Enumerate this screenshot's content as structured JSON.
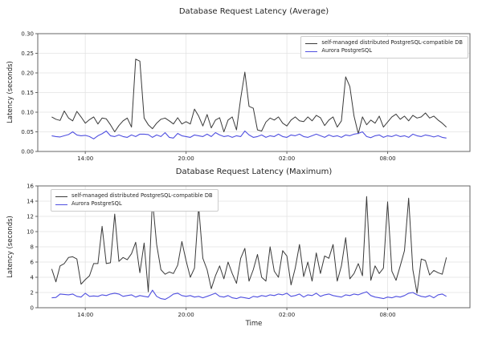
{
  "style": {
    "background_color": "#ffffff",
    "grid_color": "#e3e3e3",
    "spine_color": "#666666",
    "text_color": "#262626",
    "legend_border_color": "#cccccc"
  },
  "chart_data": [
    {
      "type": "line",
      "title": "Database Request Latency (Average)",
      "xlabel": "",
      "ylabel": "Latency (seconds)",
      "grid": true,
      "legend_position": "upper right",
      "ylim": [
        0,
        0.3
      ],
      "y_ticks": [
        0.0,
        0.05,
        0.1,
        0.15,
        0.2,
        0.25,
        0.3
      ],
      "y_tick_labels": [
        "0.00",
        "0.05",
        "0.10",
        "0.15",
        "0.20",
        "0.25",
        "0.30"
      ],
      "xlim_hours": [
        11.17,
        36.9
      ],
      "x_ticks_hours": [
        14,
        20,
        26,
        32
      ],
      "x_tick_labels": [
        "14:00",
        "20:00",
        "02:00",
        "08:00"
      ],
      "x_start_hour": 12.0,
      "x_step_hours": 0.25,
      "series": [
        {
          "name": "self-managed distributed PostgreSQL-compatible DB",
          "color": "#3a3a3a",
          "line_width": 1,
          "values": [
            0.088,
            0.082,
            0.079,
            0.103,
            0.085,
            0.078,
            0.102,
            0.088,
            0.072,
            0.081,
            0.088,
            0.07,
            0.085,
            0.083,
            0.068,
            0.05,
            0.066,
            0.078,
            0.085,
            0.062,
            0.235,
            0.23,
            0.085,
            0.068,
            0.058,
            0.072,
            0.082,
            0.085,
            0.078,
            0.07,
            0.086,
            0.07,
            0.076,
            0.07,
            0.108,
            0.09,
            0.065,
            0.094,
            0.06,
            0.08,
            0.086,
            0.05,
            0.08,
            0.088,
            0.055,
            0.135,
            0.202,
            0.115,
            0.11,
            0.055,
            0.052,
            0.075,
            0.085,
            0.08,
            0.088,
            0.072,
            0.065,
            0.08,
            0.088,
            0.078,
            0.076,
            0.088,
            0.078,
            0.092,
            0.086,
            0.066,
            0.08,
            0.088,
            0.062,
            0.078,
            0.19,
            0.165,
            0.09,
            0.045,
            0.088,
            0.068,
            0.08,
            0.072,
            0.09,
            0.062,
            0.075,
            0.088,
            0.095,
            0.082,
            0.09,
            0.078,
            0.092,
            0.085,
            0.088,
            0.098,
            0.085,
            0.09,
            0.08,
            0.072,
            0.062
          ]
        },
        {
          "name": "Aurora PostgreSQL",
          "color": "#5050e0",
          "line_width": 1.1,
          "values": [
            0.04,
            0.038,
            0.037,
            0.04,
            0.043,
            0.05,
            0.042,
            0.04,
            0.041,
            0.038,
            0.032,
            0.04,
            0.045,
            0.052,
            0.04,
            0.038,
            0.042,
            0.038,
            0.036,
            0.042,
            0.038,
            0.044,
            0.044,
            0.043,
            0.036,
            0.042,
            0.038,
            0.048,
            0.036,
            0.034,
            0.046,
            0.04,
            0.038,
            0.036,
            0.042,
            0.04,
            0.038,
            0.044,
            0.038,
            0.048,
            0.042,
            0.038,
            0.04,
            0.036,
            0.04,
            0.038,
            0.052,
            0.042,
            0.036,
            0.038,
            0.042,
            0.036,
            0.04,
            0.038,
            0.044,
            0.038,
            0.036,
            0.042,
            0.04,
            0.044,
            0.038,
            0.036,
            0.04,
            0.044,
            0.04,
            0.036,
            0.042,
            0.038,
            0.04,
            0.036,
            0.042,
            0.04,
            0.044,
            0.046,
            0.05,
            0.038,
            0.035,
            0.04,
            0.042,
            0.036,
            0.04,
            0.038,
            0.042,
            0.038,
            0.04,
            0.036,
            0.044,
            0.04,
            0.038,
            0.042,
            0.04,
            0.037,
            0.04,
            0.036,
            0.034
          ]
        }
      ]
    },
    {
      "type": "line",
      "title": "Database Request Latency (Maximum)",
      "xlabel": "Time",
      "ylabel": "Latency (seconds)",
      "grid": true,
      "legend_position": "upper left",
      "ylim": [
        0,
        16
      ],
      "y_ticks": [
        0,
        2,
        4,
        6,
        8,
        10,
        12,
        14,
        16
      ],
      "y_tick_labels": [
        "0",
        "2",
        "4",
        "6",
        "8",
        "10",
        "12",
        "14",
        "16"
      ],
      "xlim_hours": [
        11.17,
        36.9
      ],
      "x_ticks_hours": [
        14,
        20,
        26,
        32
      ],
      "x_tick_labels": [
        "14:00",
        "20:00",
        "02:00",
        "08:00"
      ],
      "x_start_hour": 12.0,
      "x_step_hours": 0.25,
      "series": [
        {
          "name": "self-managed distributed PostgreSQL-compatible DB",
          "color": "#3a3a3a",
          "line_width": 1,
          "values": [
            5.1,
            3.4,
            5.5,
            5.8,
            6.6,
            6.7,
            6.4,
            3.1,
            3.7,
            4.2,
            5.8,
            5.8,
            10.7,
            5.8,
            5.9,
            12.3,
            6.1,
            6.6,
            6.3,
            7.1,
            8.6,
            4.6,
            8.5,
            2.1,
            14.2,
            8.3,
            5.0,
            4.4,
            4.7,
            4.5,
            5.6,
            8.7,
            6.2,
            4.0,
            5.2,
            13.3,
            6.5,
            5.0,
            2.5,
            4.2,
            5.5,
            3.8,
            6.0,
            4.5,
            3.2,
            6.5,
            7.8,
            3.5,
            5.0,
            7.0,
            4.0,
            3.5,
            8.0,
            4.8,
            4.0,
            7.5,
            6.8,
            3.0,
            5.2,
            8.3,
            4.1,
            6.0,
            3.5,
            7.2,
            4.5,
            6.8,
            6.5,
            8.3,
            3.5,
            5.5,
            9.2,
            3.8,
            4.5,
            5.8,
            4.2,
            14.6,
            3.6,
            5.5,
            4.5,
            5.2,
            13.9,
            4.8,
            3.6,
            5.5,
            7.5,
            14.4,
            5.0,
            1.9,
            6.4,
            6.2,
            4.3,
            4.9,
            4.6,
            4.4,
            6.6
          ]
        },
        {
          "name": "Aurora PostgreSQL",
          "color": "#5050e0",
          "line_width": 1.1,
          "values": [
            1.3,
            1.35,
            1.8,
            1.75,
            1.7,
            1.8,
            1.5,
            1.4,
            1.9,
            1.5,
            1.55,
            1.5,
            1.7,
            1.6,
            1.8,
            1.9,
            1.8,
            1.5,
            1.6,
            1.7,
            1.4,
            1.6,
            1.5,
            1.4,
            2.3,
            1.5,
            1.2,
            1.1,
            1.4,
            1.8,
            1.9,
            1.6,
            1.5,
            1.6,
            1.4,
            1.5,
            1.3,
            1.5,
            1.7,
            1.9,
            1.5,
            1.4,
            1.6,
            1.3,
            1.2,
            1.4,
            1.3,
            1.2,
            1.5,
            1.4,
            1.6,
            1.5,
            1.7,
            1.6,
            1.8,
            1.7,
            1.9,
            1.5,
            1.6,
            1.8,
            1.4,
            1.7,
            1.6,
            1.9,
            1.5,
            1.7,
            1.8,
            1.6,
            1.5,
            1.4,
            1.7,
            1.6,
            1.8,
            1.7,
            1.9,
            2.1,
            1.6,
            1.4,
            1.3,
            1.2,
            1.4,
            1.3,
            1.5,
            1.4,
            1.6,
            1.9,
            2.0,
            1.7,
            1.5,
            1.4,
            1.6,
            1.3,
            1.7,
            1.8,
            1.5
          ]
        }
      ]
    }
  ]
}
